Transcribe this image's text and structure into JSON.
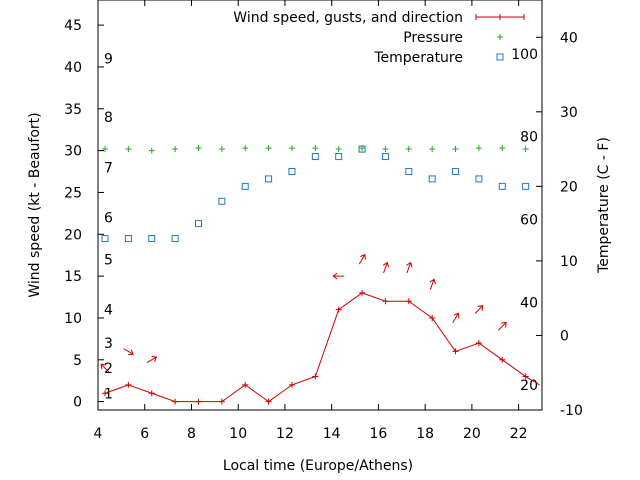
{
  "chart_data": {
    "type": "line",
    "xlabel": "Local time (Europe/Athens)",
    "ylabel_left": "Wind speed (kt - Beaufort)",
    "ylabel_right": "Temperature (C - F)",
    "xlim": [
      4,
      23
    ],
    "ylim_left": [
      -1,
      48
    ],
    "ylim_right_celsius": [
      -10,
      45
    ],
    "x_ticks": [
      4,
      6,
      8,
      10,
      12,
      14,
      16,
      18,
      20,
      22
    ],
    "y_ticks_left": [
      0,
      5,
      10,
      15,
      20,
      25,
      30,
      35,
      40,
      45
    ],
    "y_ticks_right_celsius": [
      -10,
      0,
      10,
      20,
      30,
      40
    ],
    "fahrenheit_labels": [
      20,
      40,
      60,
      80,
      100
    ],
    "beaufort_labels": [
      {
        "value": 1,
        "kt": 1
      },
      {
        "value": 2,
        "kt": 4
      },
      {
        "value": 3,
        "kt": 7
      },
      {
        "value": 4,
        "kt": 11
      },
      {
        "value": 5,
        "kt": 17
      },
      {
        "value": 6,
        "kt": 22
      },
      {
        "value": 7,
        "kt": 28
      },
      {
        "value": 8,
        "kt": 34
      },
      {
        "value": 9,
        "kt": 41
      }
    ],
    "legend_position": "top-right",
    "legend": [
      {
        "label": "Wind speed, gusts, and direction",
        "marker": "line-plus",
        "color": "#cc0000"
      },
      {
        "label": "Pressure",
        "marker": "plus",
        "color": "#22aa22"
      },
      {
        "label": "Temperature",
        "marker": "square",
        "color": "#1f7ac4"
      }
    ],
    "wind": {
      "x": [
        4.3,
        5.3,
        6.3,
        7.3,
        8.3,
        9.3,
        10.3,
        11.3,
        12.3,
        13.3,
        14.3,
        15.3,
        16.3,
        17.3,
        18.3,
        19.3,
        20.3,
        21.3,
        22.3,
        22.9
      ],
      "y": [
        1,
        2,
        1,
        0,
        0,
        0,
        2,
        0,
        2,
        3,
        11,
        13,
        12,
        12,
        10,
        6,
        7,
        5,
        3,
        2
      ]
    },
    "wind_direction_arrows": [
      {
        "x": 4.3,
        "y": 4,
        "direction_deg": 135
      },
      {
        "x": 5.3,
        "y": 6,
        "direction_deg": 300
      },
      {
        "x": 6.3,
        "y": 5,
        "direction_deg": 240
      },
      {
        "x": 14.3,
        "y": 15,
        "direction_deg": 90
      },
      {
        "x": 15.3,
        "y": 17,
        "direction_deg": 210
      },
      {
        "x": 16.3,
        "y": 16,
        "direction_deg": 200
      },
      {
        "x": 17.3,
        "y": 16,
        "direction_deg": 200
      },
      {
        "x": 18.3,
        "y": 14,
        "direction_deg": 200
      },
      {
        "x": 19.3,
        "y": 10,
        "direction_deg": 210
      },
      {
        "x": 20.3,
        "y": 11,
        "direction_deg": 225
      },
      {
        "x": 21.3,
        "y": 9,
        "direction_deg": 225
      }
    ],
    "pressure_plot_kt": {
      "x": [
        4.3,
        5.3,
        6.3,
        7.3,
        8.3,
        9.3,
        10.3,
        11.3,
        12.3,
        13.3,
        14.3,
        15.3,
        16.3,
        17.3,
        18.3,
        19.3,
        20.3,
        21.3,
        22.3
      ],
      "y": [
        30.2,
        30.2,
        30.0,
        30.2,
        30.3,
        30.2,
        30.3,
        30.3,
        30.3,
        30.3,
        30.2,
        30.3,
        30.2,
        30.2,
        30.2,
        30.2,
        30.3,
        30.3,
        30.2
      ]
    },
    "temperature_c": {
      "x": [
        4.3,
        5.3,
        6.3,
        7.3,
        8.3,
        9.3,
        10.3,
        11.3,
        12.3,
        13.3,
        14.3,
        15.3,
        16.3,
        17.3,
        18.3,
        19.3,
        20.3,
        21.3,
        22.3
      ],
      "y": [
        13,
        13,
        13,
        13,
        15,
        18,
        20,
        21,
        22,
        24,
        24,
        25,
        24,
        22,
        21,
        22,
        21,
        20,
        20
      ]
    }
  }
}
